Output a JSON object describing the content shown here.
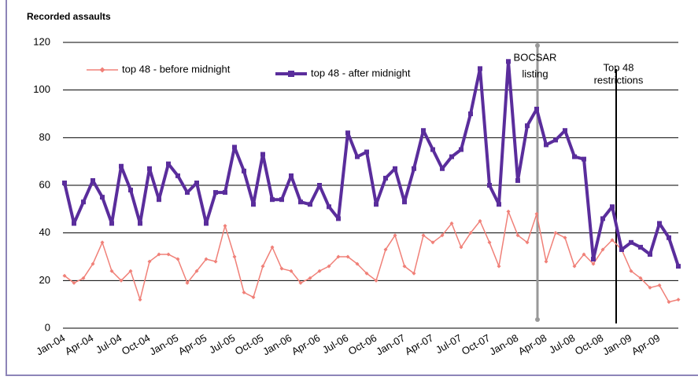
{
  "chart_data": {
    "type": "line",
    "title": "Recorded assaults",
    "categories": [
      "Jan-04",
      null,
      null,
      "Apr-04",
      null,
      null,
      "Jul-04",
      null,
      null,
      "Oct-04",
      null,
      null,
      "Jan-05",
      null,
      null,
      "Apr-05",
      null,
      null,
      "Jul-05",
      null,
      null,
      "Oct-05",
      null,
      null,
      "Jan-06",
      null,
      null,
      "Apr-06",
      null,
      null,
      "Jul-06",
      null,
      null,
      "Oct-06",
      null,
      null,
      "Jan-07",
      null,
      null,
      "Apr-07",
      null,
      null,
      "Jul-07",
      null,
      null,
      "Oct-07",
      null,
      null,
      "Jan-08",
      null,
      null,
      "Apr-08",
      null,
      null,
      "Jul-08",
      null,
      null,
      "Oct-08",
      null,
      null,
      "Jan-09",
      null,
      null,
      "Apr-09",
      null,
      null
    ],
    "series": [
      {
        "name": "top 48 - before midnight",
        "color": "#f08078",
        "marker": "diamond",
        "values": [
          22,
          19,
          21,
          27,
          36,
          24,
          20,
          24,
          12,
          28,
          31,
          31,
          29,
          19,
          24,
          29,
          28,
          43,
          30,
          15,
          13,
          26,
          34,
          25,
          24,
          19,
          21,
          24,
          26,
          30,
          30,
          27,
          23,
          20,
          33,
          39,
          26,
          23,
          39,
          36,
          39,
          44,
          34,
          40,
          45,
          36,
          26,
          49,
          39,
          36,
          48,
          28,
          40,
          38,
          26,
          31,
          27,
          33,
          37,
          33,
          24,
          21,
          17,
          18,
          11,
          12
        ]
      },
      {
        "name": "top 48 - after midnight",
        "color": "#5a2d9c",
        "marker": "square",
        "values": [
          61,
          44,
          53,
          62,
          55,
          44,
          68,
          58,
          44,
          67,
          54,
          69,
          64,
          57,
          61,
          44,
          57,
          57,
          76,
          66,
          52,
          73,
          54,
          54,
          64,
          53,
          52,
          60,
          51,
          46,
          82,
          72,
          74,
          52,
          63,
          67,
          53,
          67,
          83,
          75,
          67,
          72,
          75,
          90,
          109,
          60,
          52,
          112,
          62,
          85,
          92,
          77,
          79,
          83,
          72,
          71,
          29,
          46,
          51,
          33,
          36,
          34,
          31,
          44,
          38,
          26
        ]
      }
    ],
    "ylim": [
      0,
      120
    ],
    "yticks": [
      0,
      20,
      40,
      60,
      80,
      100,
      120
    ],
    "grid": true,
    "annotations": [
      [
        "BOCSAR",
        "listing"
      ],
      [
        "Top 48",
        "restrictions"
      ]
    ]
  }
}
